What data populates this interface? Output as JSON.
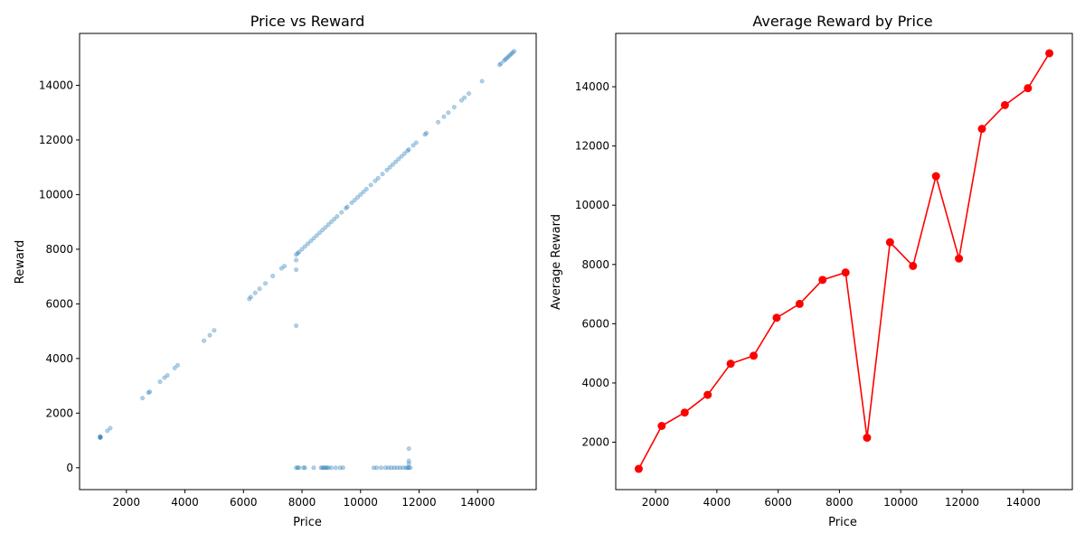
{
  "chart_data": [
    {
      "type": "scatter",
      "title": "Price vs Reward",
      "xlabel": "Price",
      "ylabel": "Reward",
      "xlim": [
        400,
        16000
      ],
      "ylim": [
        -800,
        15900
      ],
      "xticks": [
        2000,
        4000,
        6000,
        8000,
        10000,
        12000,
        14000
      ],
      "yticks": [
        0,
        2000,
        4000,
        6000,
        8000,
        10000,
        12000,
        14000
      ],
      "marker_color": "#1f77b4",
      "marker_alpha": 0.35,
      "series": [
        {
          "points": [
            [
              1100,
              1100
            ],
            [
              1110,
              1110
            ],
            [
              1120,
              1120
            ],
            [
              1100,
              1150
            ],
            [
              1350,
              1350
            ],
            [
              1450,
              1450
            ],
            [
              2550,
              2550
            ],
            [
              2750,
              2750
            ],
            [
              2800,
              2780
            ],
            [
              3150,
              3150
            ],
            [
              3300,
              3300
            ],
            [
              3400,
              3380
            ],
            [
              3650,
              3650
            ],
            [
              3750,
              3750
            ],
            [
              4650,
              4650
            ],
            [
              4850,
              4850
            ],
            [
              5000,
              5030
            ],
            [
              6200,
              6180
            ],
            [
              6250,
              6250
            ],
            [
              6400,
              6400
            ],
            [
              6550,
              6550
            ],
            [
              6750,
              6750
            ],
            [
              7000,
              7020
            ],
            [
              7300,
              7300
            ],
            [
              7400,
              7380
            ],
            [
              7800,
              7250
            ],
            [
              7800,
              5200
            ],
            [
              7800,
              7600
            ],
            [
              7800,
              7800
            ],
            [
              7850,
              7850
            ],
            [
              7900,
              7900
            ],
            [
              8000,
              8000
            ],
            [
              8100,
              8100
            ],
            [
              8200,
              8200
            ],
            [
              8300,
              8300
            ],
            [
              8400,
              8400
            ],
            [
              8500,
              8500
            ],
            [
              8600,
              8600
            ],
            [
              8700,
              8700
            ],
            [
              8800,
              8800
            ],
            [
              8900,
              8900
            ],
            [
              9000,
              9000
            ],
            [
              9100,
              9100
            ],
            [
              9200,
              9200
            ],
            [
              9350,
              9350
            ],
            [
              9500,
              9500
            ],
            [
              9550,
              9550
            ],
            [
              9700,
              9700
            ],
            [
              9800,
              9800
            ],
            [
              9900,
              9900
            ],
            [
              10000,
              10000
            ],
            [
              10100,
              10100
            ],
            [
              10200,
              10200
            ],
            [
              10350,
              10350
            ],
            [
              10500,
              10500
            ],
            [
              10600,
              10600
            ],
            [
              10750,
              10750
            ],
            [
              10900,
              10900
            ],
            [
              11000,
              11000
            ],
            [
              11100,
              11100
            ],
            [
              11200,
              11200
            ],
            [
              11300,
              11300
            ],
            [
              11400,
              11400
            ],
            [
              11500,
              11500
            ],
            [
              11600,
              11600
            ],
            [
              11650,
              11650
            ],
            [
              11800,
              11800
            ],
            [
              11900,
              11900
            ],
            [
              12200,
              12200
            ],
            [
              12250,
              12250
            ],
            [
              12650,
              12650
            ],
            [
              12850,
              12850
            ],
            [
              13000,
              13000
            ],
            [
              13200,
              13200
            ],
            [
              13450,
              13450
            ],
            [
              13550,
              13550
            ],
            [
              13700,
              13700
            ],
            [
              14150,
              14150
            ],
            [
              14750,
              14750
            ],
            [
              14800,
              14800
            ],
            [
              14900,
              14900
            ],
            [
              14950,
              14950
            ],
            [
              15000,
              15000
            ],
            [
              15050,
              15050
            ],
            [
              15100,
              15100
            ],
            [
              15150,
              15150
            ],
            [
              15200,
              15200
            ],
            [
              15250,
              15250
            ],
            [
              7800,
              0
            ],
            [
              7850,
              0
            ],
            [
              7900,
              0
            ],
            [
              8050,
              0
            ],
            [
              8100,
              0
            ],
            [
              8400,
              0
            ],
            [
              8650,
              0
            ],
            [
              8700,
              0
            ],
            [
              8750,
              0
            ],
            [
              8800,
              0
            ],
            [
              8850,
              0
            ],
            [
              8900,
              0
            ],
            [
              9000,
              0
            ],
            [
              9150,
              0
            ],
            [
              9300,
              0
            ],
            [
              9400,
              0
            ],
            [
              10450,
              0
            ],
            [
              10550,
              0
            ],
            [
              10700,
              0
            ],
            [
              10850,
              0
            ],
            [
              10950,
              0
            ],
            [
              11050,
              0
            ],
            [
              11150,
              0
            ],
            [
              11250,
              0
            ],
            [
              11350,
              0
            ],
            [
              11450,
              0
            ],
            [
              11550,
              0
            ],
            [
              11600,
              0
            ],
            [
              11650,
              0
            ],
            [
              11700,
              0
            ],
            [
              11650,
              150
            ],
            [
              11650,
              250
            ],
            [
              11650,
              700
            ]
          ]
        }
      ]
    },
    {
      "type": "line",
      "title": "Average Reward by Price",
      "xlabel": "Price",
      "ylabel": "Average Reward",
      "xlim": [
        700,
        15600
      ],
      "ylim": [
        400,
        15800
      ],
      "xticks": [
        2000,
        4000,
        6000,
        8000,
        10000,
        12000,
        14000
      ],
      "yticks": [
        2000,
        4000,
        6000,
        8000,
        10000,
        12000,
        14000
      ],
      "line_color": "#ff0000",
      "series": [
        {
          "x": [
            1450,
            2200,
            2950,
            3700,
            4450,
            5200,
            5950,
            6700,
            7450,
            8200,
            8900,
            9650,
            10400,
            11150,
            11900,
            12650,
            13400,
            14150,
            14850
          ],
          "y": [
            1100,
            2550,
            3000,
            3600,
            4650,
            4920,
            6200,
            6670,
            7480,
            7730,
            2150,
            8750,
            7950,
            10980,
            8200,
            12580,
            13380,
            13950,
            15130
          ]
        }
      ]
    }
  ]
}
